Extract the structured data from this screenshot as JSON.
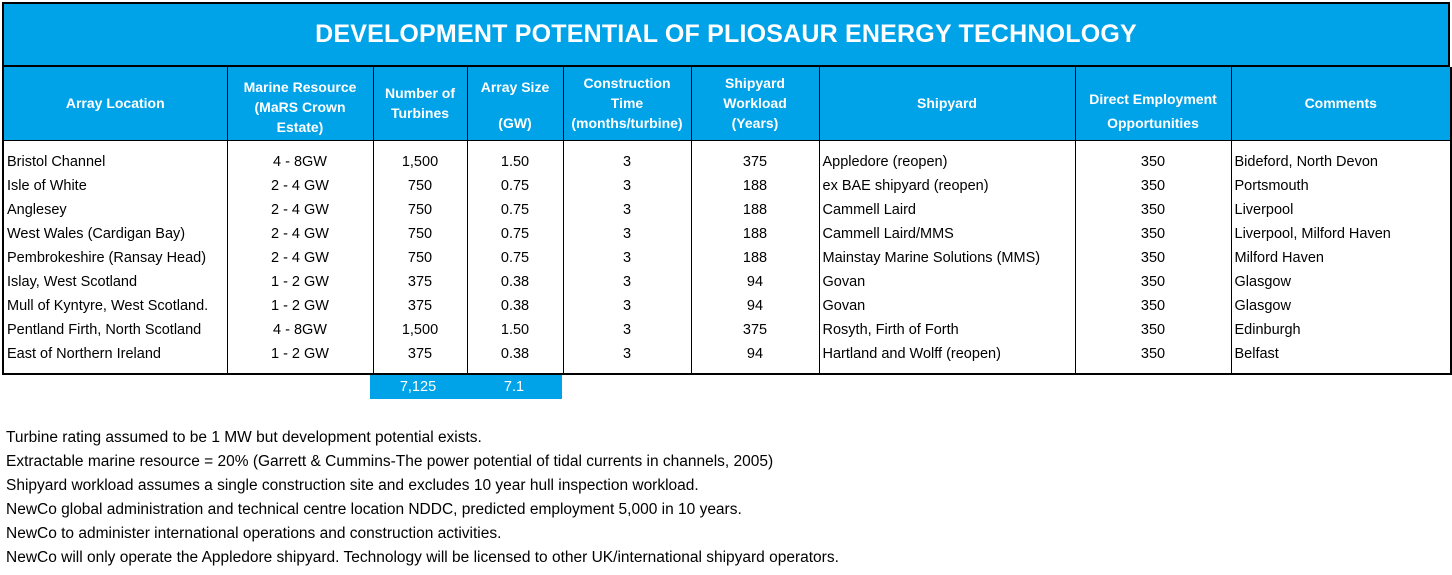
{
  "title": "DEVELOPMENT POTENTIAL OF PLIOSAUR ENERGY TECHNOLOGY",
  "headers": {
    "location": "Array Location",
    "resource_top": "Marine Resource",
    "resource_bottom": "(MaRS Crown Estate)",
    "turbines": "Number of Turbines",
    "size_top": "Array Size",
    "size_bottom": "(GW)",
    "construction_top": "Construction Time",
    "construction_bottom": "(months/turbine)",
    "workload_top": "Shipyard Workload",
    "workload_bottom": "(Years)",
    "shipyard": "Shipyard",
    "employment_top": "Direct Employment",
    "employment_bottom": "Opportunities",
    "comments": "Comments"
  },
  "rows": [
    {
      "location": "Bristol Channel",
      "resource": "4 - 8GW",
      "turbines": "1,500",
      "size": "1.50",
      "construction": "3",
      "workload": "375",
      "shipyard": "Appledore (reopen)",
      "employment": "350",
      "comments": "Bideford, North Devon"
    },
    {
      "location": "Isle of White",
      "resource": "2 - 4 GW",
      "turbines": "750",
      "size": "0.75",
      "construction": "3",
      "workload": "188",
      "shipyard": "ex BAE shipyard (reopen)",
      "employment": "350",
      "comments": "Portsmouth"
    },
    {
      "location": "Anglesey",
      "resource": "2 - 4 GW",
      "turbines": "750",
      "size": "0.75",
      "construction": "3",
      "workload": "188",
      "shipyard": "Cammell Laird",
      "employment": "350",
      "comments": "Liverpool"
    },
    {
      "location": "West Wales (Cardigan Bay)",
      "resource": "2 - 4 GW",
      "turbines": "750",
      "size": "0.75",
      "construction": "3",
      "workload": "188",
      "shipyard": "Cammell Laird/MMS",
      "employment": "350",
      "comments": "Liverpool, Milford Haven"
    },
    {
      "location": "Pembrokeshire (Ransay Head)",
      "resource": "2 - 4 GW",
      "turbines": "750",
      "size": "0.75",
      "construction": "3",
      "workload": "188",
      "shipyard": "Mainstay Marine Solutions (MMS)",
      "employment": "350",
      "comments": "Milford Haven"
    },
    {
      "location": "Islay, West  Scotland",
      "resource": "1 - 2 GW",
      "turbines": "375",
      "size": "0.38",
      "construction": "3",
      "workload": "94",
      "shipyard": "Govan",
      "employment": "350",
      "comments": "Glasgow"
    },
    {
      "location": "Mull of Kyntyre, West Scotland.",
      "resource": "1 - 2 GW",
      "turbines": "375",
      "size": "0.38",
      "construction": "3",
      "workload": "94",
      "shipyard": "Govan",
      "employment": "350",
      "comments": "Glasgow"
    },
    {
      "location": "Pentland Firth, North Scotland",
      "resource": "4 - 8GW",
      "turbines": "1,500",
      "size": "1.50",
      "construction": "3",
      "workload": "375",
      "shipyard": "Rosyth, Firth of Forth",
      "employment": "350",
      "comments": "Edinburgh"
    },
    {
      "location": "East of Northern Ireland",
      "resource": "1 - 2 GW",
      "turbines": "375",
      "size": "0.38",
      "construction": "3",
      "workload": "94",
      "shipyard": "Hartland and Wolff (reopen)",
      "employment": "350",
      "comments": "Belfast"
    }
  ],
  "totals": {
    "turbines": "7,125",
    "size": "7.1"
  },
  "notes": [
    "Turbine rating assumed to be 1 MW but development potential exists.",
    "Extractable marine resource = 20%  (Garrett & Cummins-The power potential of tidal currents in channels, 2005)",
    "Shipyard workload assumes a single construction site and excludes 10 year hull inspection workload.",
    "NewCo global administration and technical centre location NDDC, predicted employment 5,000 in 10 years.",
    "NewCo to administer international operations and construction activities.",
    "NewCo will only operate the Appledore shipyard. Technology will be licensed to other UK/international  shipyard operators."
  ]
}
